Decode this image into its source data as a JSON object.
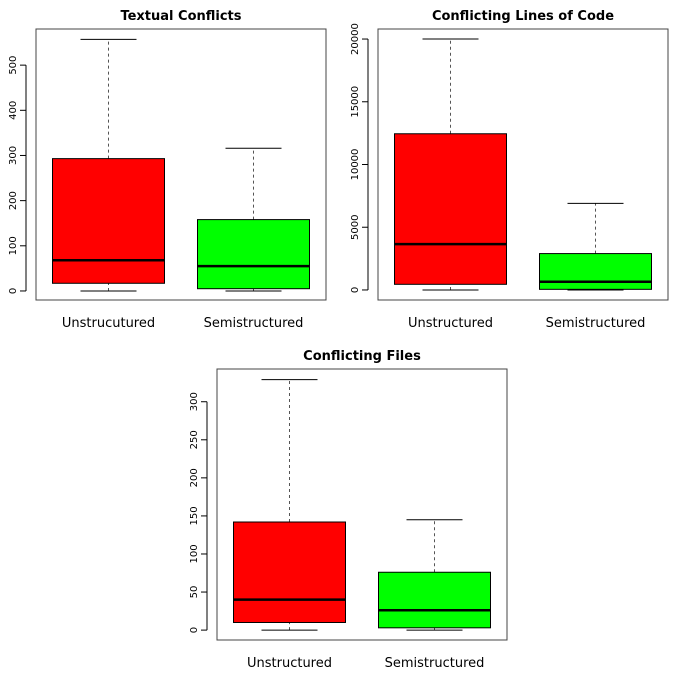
{
  "chart_data": [
    {
      "type": "boxplot",
      "title": "Textual Conflicts",
      "categories": [
        "Unstrucutured",
        "Semistructured"
      ],
      "ylim": [
        -20,
        580
      ],
      "yticks": [
        0,
        100,
        200,
        300,
        400,
        500
      ],
      "series": [
        {
          "min": 0,
          "q1": 17,
          "median": 68,
          "q3": 293,
          "max": 557,
          "color": "#ff0000"
        },
        {
          "min": 0,
          "q1": 5,
          "median": 55,
          "q3": 158,
          "max": 316,
          "color": "#00ff00"
        }
      ],
      "grid": false
    },
    {
      "type": "boxplot",
      "title": "Conflicting Lines of Code",
      "categories": [
        "Unstructured",
        "Semistructured"
      ],
      "ylim": [
        -800,
        20800
      ],
      "yticks": [
        0,
        5000,
        10000,
        15000,
        20000
      ],
      "series": [
        {
          "min": 0,
          "q1": 450,
          "median": 3650,
          "q3": 12450,
          "max": 20000,
          "color": "#ff0000"
        },
        {
          "min": 0,
          "q1": 50,
          "median": 650,
          "q3": 2900,
          "max": 6900,
          "color": "#00ff00"
        }
      ],
      "grid": false
    },
    {
      "type": "boxplot",
      "title": "Conflicting Files",
      "categories": [
        "Unstructured",
        "Semistructured"
      ],
      "ylim": [
        -13,
        343
      ],
      "yticks": [
        0,
        50,
        100,
        150,
        200,
        250,
        300
      ],
      "series": [
        {
          "min": 0,
          "q1": 10,
          "median": 40,
          "q3": 142,
          "max": 329,
          "color": "#ff0000"
        },
        {
          "min": 0,
          "q1": 3,
          "median": 26,
          "q3": 76,
          "max": 145,
          "color": "#00ff00"
        }
      ],
      "grid": false
    }
  ]
}
